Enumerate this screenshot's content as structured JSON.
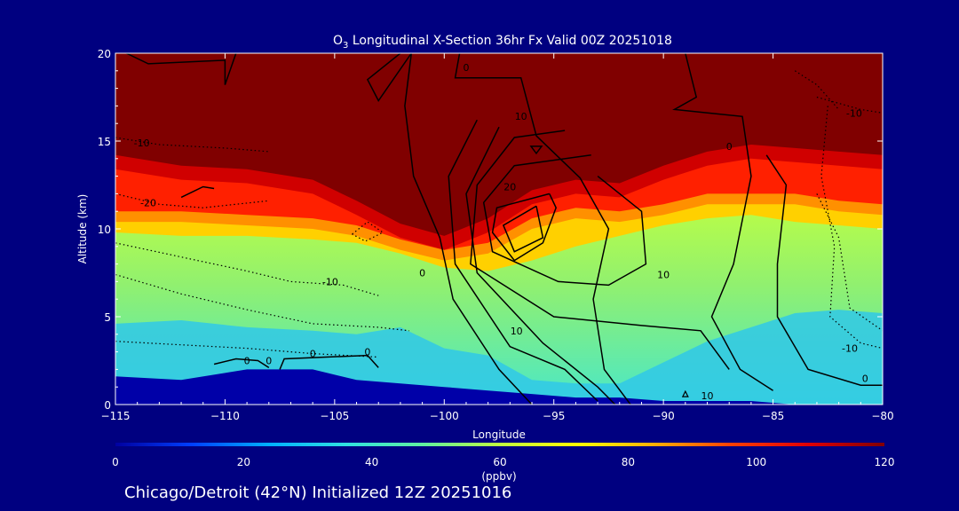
{
  "chart_data": {
    "type": "heatmap",
    "title": {
      "prefix": "O",
      "subscript": "3",
      "text": " Longitudinal X-Section 36hr  Fx Valid 00Z 20251018"
    },
    "xlabel": "Longitude",
    "ylabel": "Altitude (km)",
    "xlim": [
      -115,
      -80
    ],
    "ylim": [
      0,
      20
    ],
    "x_ticks": [
      -115,
      -110,
      -105,
      -100,
      -95,
      -90,
      -85,
      -80
    ],
    "x_tick_labels": [
      "−115",
      "−110",
      "−105",
      "−100",
      "−95",
      "−90",
      "−85",
      "−80"
    ],
    "y_ticks": [
      0,
      5,
      10,
      15,
      20
    ],
    "y_tick_labels": [
      "0",
      "5",
      "10",
      "15",
      "20"
    ],
    "grid": false,
    "colorbar": {
      "unit": "(ppbv)",
      "range": [
        0,
        120
      ],
      "ticks": [
        0,
        20,
        40,
        60,
        80,
        100,
        120
      ],
      "tick_labels": [
        "0",
        "20",
        "40",
        "60",
        "80",
        "100",
        "120"
      ],
      "colors": [
        "#0000a0",
        "#0040ff",
        "#00b0ff",
        "#30e0e0",
        "#60f0a0",
        "#c0ff40",
        "#ffff00",
        "#ffb000",
        "#ff4000",
        "#e00000",
        "#800000"
      ]
    },
    "ozone_layers": {
      "longitudes": [
        -115,
        -112,
        -109,
        -106,
        -104,
        -102,
        -100,
        -98,
        -96,
        -94,
        -92,
        -90,
        -88,
        -86,
        -84,
        -82,
        -80
      ],
      "stratosphere_base_km": [
        14.2,
        13.6,
        13.4,
        12.8,
        11.6,
        10.3,
        9.6,
        10.6,
        12.2,
        12.8,
        12.6,
        13.6,
        14.4,
        14.8,
        14.6,
        14.4,
        14.2
      ],
      "high_ozone_base_km": [
        11.0,
        11.0,
        10.8,
        10.6,
        10.2,
        9.4,
        8.8,
        9.2,
        10.6,
        11.2,
        11.0,
        11.4,
        12.0,
        12.0,
        12.0,
        11.6,
        11.4
      ],
      "mid_ozone_base_km": [
        9.8,
        9.6,
        9.6,
        9.4,
        9.2,
        8.6,
        7.8,
        7.6,
        8.2,
        9.0,
        9.6,
        10.2,
        10.6,
        10.8,
        10.4,
        10.2,
        10.0
      ],
      "surface_top_km": [
        1.6,
        1.4,
        2.0,
        2.0,
        1.4,
        1.2,
        1.0,
        0.8,
        0.6,
        0.4,
        0.4,
        0.2,
        0.2,
        0.2,
        0.0,
        0.0,
        0.0
      ],
      "surface_cyan_top_km": [
        4.6,
        4.8,
        4.4,
        4.2,
        4.0,
        4.4,
        3.2,
        2.8,
        1.4,
        1.2,
        1.2,
        2.4,
        3.6,
        4.4,
        5.2,
        5.4,
        5.2
      ]
    },
    "contour_labels": [
      {
        "lon": -108,
        "alt": 2.3,
        "text": "0"
      },
      {
        "lon": -103.5,
        "alt": 2.8,
        "text": "0"
      },
      {
        "lon": -101.0,
        "alt": 7.3,
        "text": "0"
      },
      {
        "lon": -97.0,
        "alt": 12.2,
        "text": "20"
      },
      {
        "lon": -96.5,
        "alt": 16.2,
        "text": "10"
      },
      {
        "lon": -99.0,
        "alt": 19.0,
        "text": "0"
      },
      {
        "lon": -96.7,
        "alt": 4.0,
        "text": "10"
      },
      {
        "lon": -90.0,
        "alt": 7.2,
        "text": "10"
      },
      {
        "lon": -88.0,
        "alt": 0.3,
        "text": "10"
      },
      {
        "lon": -87.0,
        "alt": 14.5,
        "text": "0"
      },
      {
        "lon": -81.3,
        "alt": 16.4,
        "text": "-10"
      },
      {
        "lon": -81.5,
        "alt": 3.0,
        "text": "-10"
      },
      {
        "lon": -80.8,
        "alt": 1.3,
        "text": "0"
      },
      {
        "lon": -113.8,
        "alt": 14.7,
        "text": "-10"
      },
      {
        "lon": -113.5,
        "alt": 11.3,
        "text": "-20"
      },
      {
        "lon": -105.2,
        "alt": 6.8,
        "text": "-10"
      },
      {
        "lon": -106.0,
        "alt": 2.7,
        "text": "0"
      },
      {
        "lon": -109.0,
        "alt": 2.3,
        "text": "0"
      }
    ],
    "markers": [
      {
        "type": "trough",
        "lon": -95.8,
        "alt": 14.5
      },
      {
        "type": "ridge",
        "lon": -89.0,
        "alt": 0.6
      }
    ]
  },
  "footer": {
    "location": "Chicago/Detroit (42°N) Initialized 12Z 20251016"
  }
}
